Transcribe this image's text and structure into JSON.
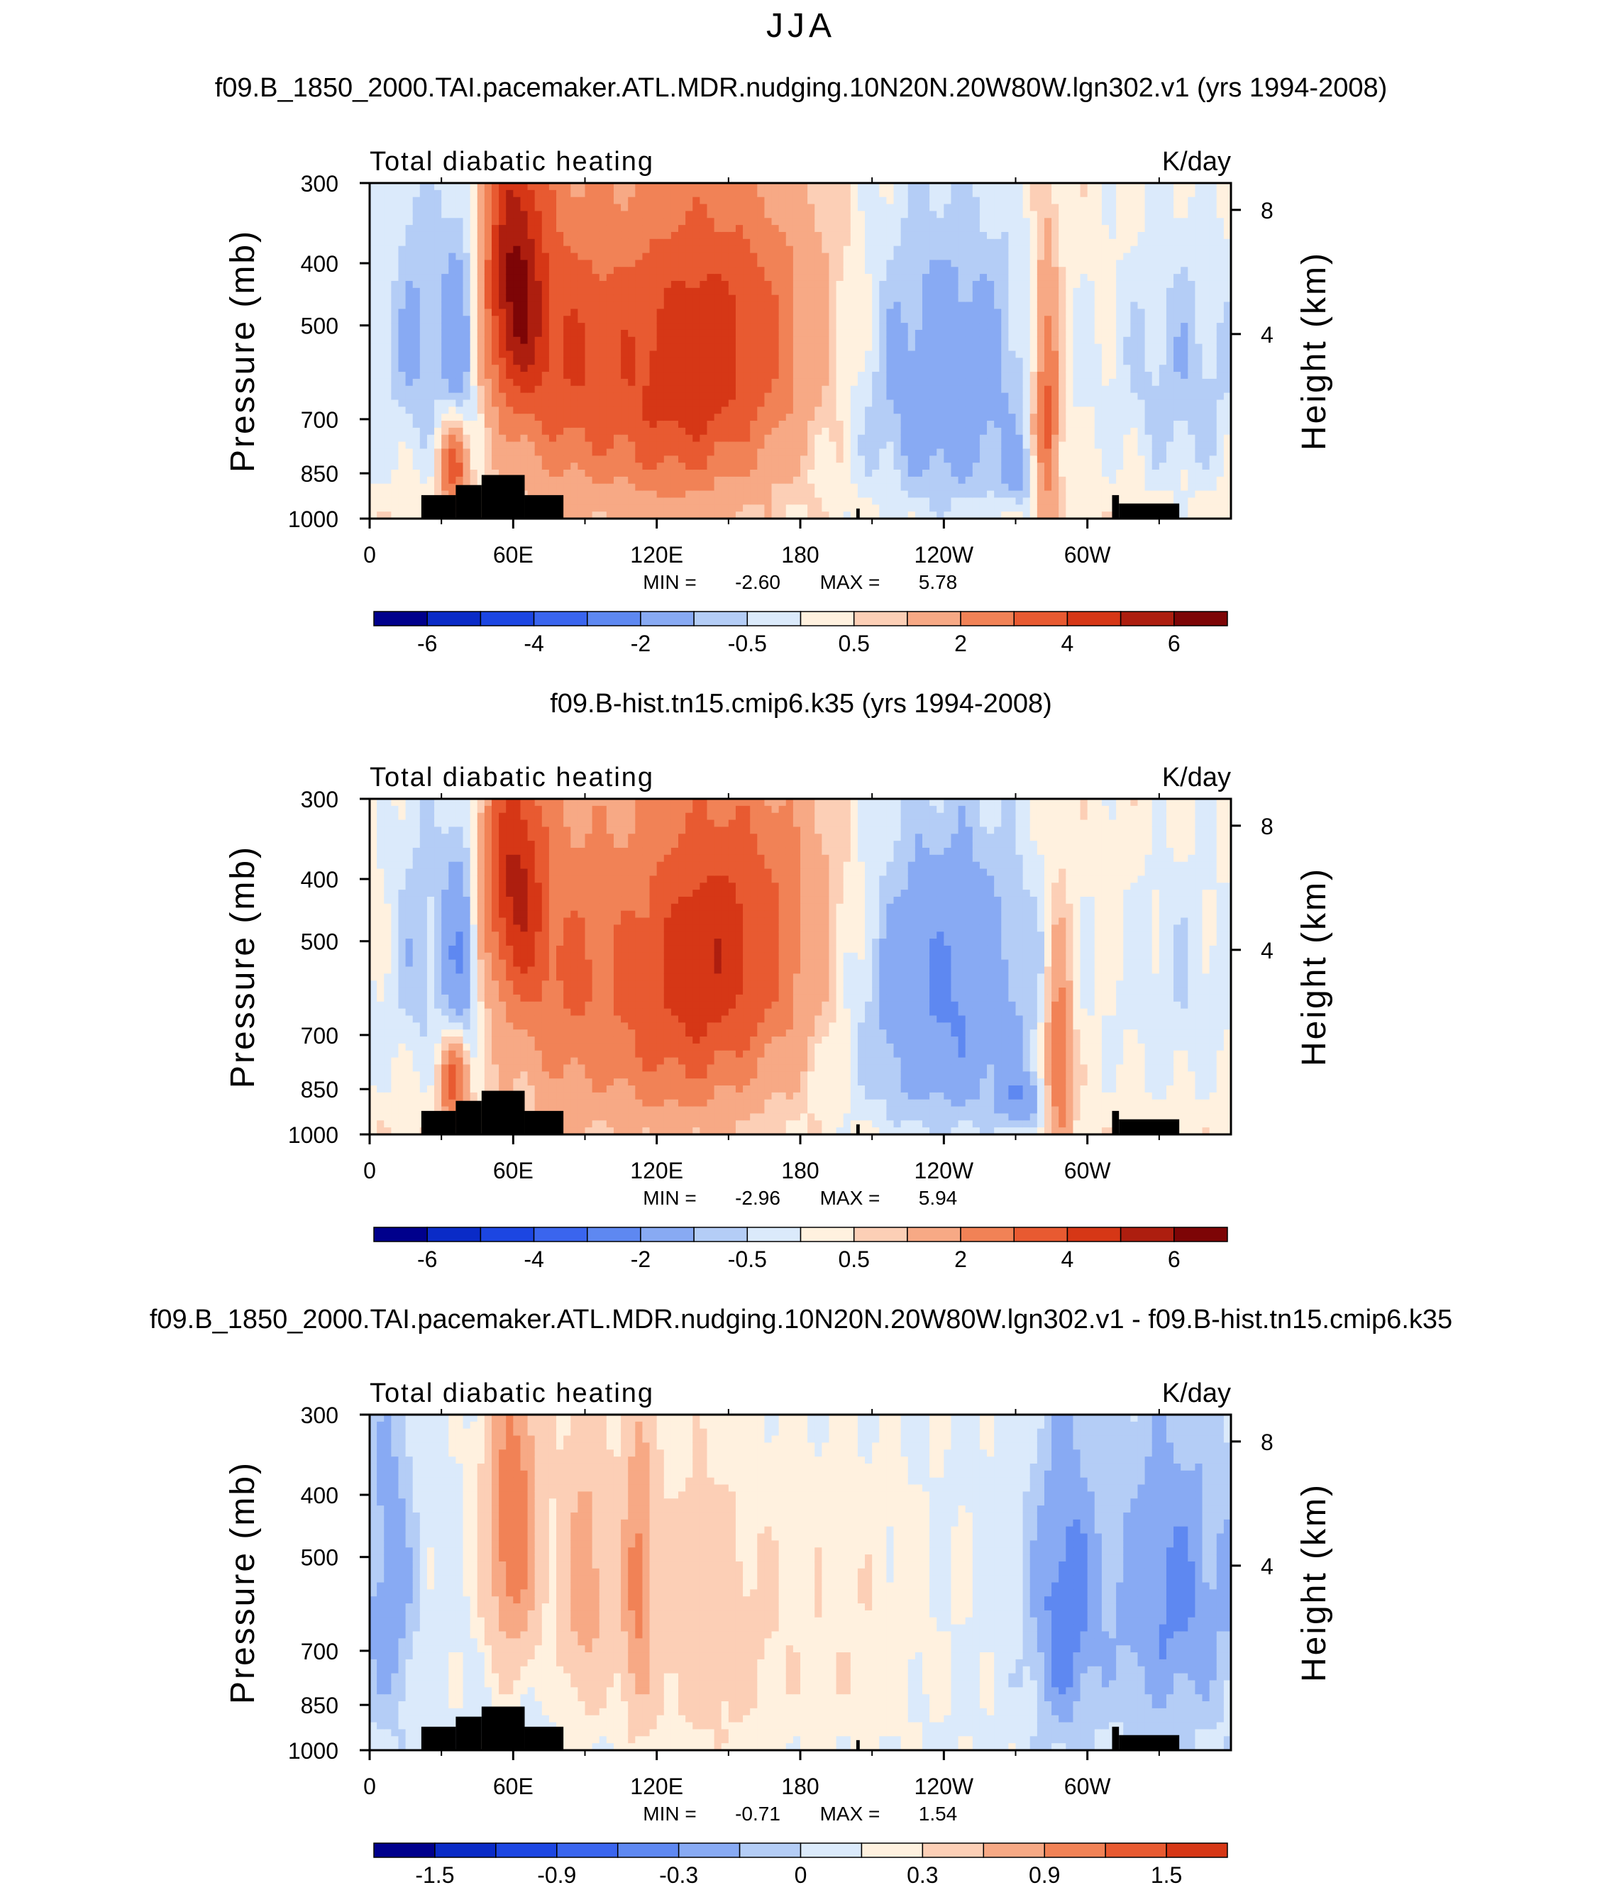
{
  "page_title": "JJA",
  "colors": {
    "full": [
      "#00008c",
      "#0a2bc7",
      "#1c46e2",
      "#3a65ee",
      "#5e88f1",
      "#88aaf3",
      "#b4cdf6",
      "#dbeafb",
      "#fff1df",
      "#fccfb6",
      "#f7a985",
      "#f18256",
      "#e85a31",
      "#d63716",
      "#ad1e0f",
      "#7d0506"
    ],
    "diff": [
      "#00008c",
      "#0a2bc7",
      "#1c46e2",
      "#3a65ee",
      "#5e88f1",
      "#88aaf3",
      "#b4cdf6",
      "#dbeafb",
      "#fff1df",
      "#fccfb6",
      "#f7a985",
      "#f18256",
      "#e85a31",
      "#d63716",
      "#ad1e0f",
      "#7d0506"
    ]
  },
  "chart_data": [
    {
      "type": "heatmap",
      "title": "f09.B_1850_2000.TAI.pacemaker.ATL.MDR.nudging.10N20N.20W80W.lgn302.v1 (yrs 1994-2008)",
      "left_label": "Total diabatic heating",
      "right_label": "K/day",
      "ylabel": "Pressure (mb)",
      "ylabel_right": "Height (km)",
      "yticks": [
        "300",
        "400",
        "500",
        "700",
        "850",
        "1000"
      ],
      "ytick_values": [
        300,
        400,
        500,
        700,
        850,
        1000
      ],
      "ylim": [
        1000,
        300
      ],
      "yticks_right": [
        "8",
        "4"
      ],
      "xticks": [
        "0",
        "60E",
        "120E",
        "180",
        "120W",
        "60W"
      ],
      "xtick_values": [
        0,
        60,
        120,
        180,
        240,
        300
      ],
      "xlim": [
        0,
        360
      ],
      "stats": {
        "min_label": "MIN =",
        "min": "-2.60",
        "max_label": "MAX =",
        "max": "5.78"
      },
      "colorbar": {
        "labels": [
          "-6",
          "-4",
          "-2",
          "-0.5",
          "0.5",
          "2",
          "4",
          "6"
        ],
        "levels": [
          -7,
          -6,
          -5,
          -4,
          -3,
          -2,
          -1,
          -0.5,
          0,
          0.5,
          1,
          2,
          3,
          4,
          5,
          6,
          7
        ]
      },
      "scale": 1,
      "features": [
        {
          "lon": 20,
          "p": 500,
          "sx": 8,
          "sy": 230,
          "a": -1.3
        },
        {
          "lon": 38,
          "p": 520,
          "sx": 6,
          "sy": 170,
          "a": -2.2
        },
        {
          "lon": 35,
          "p": 830,
          "sx": 4,
          "sy": 90,
          "a": 3.3
        },
        {
          "lon": 60,
          "p": 420,
          "sx": 9,
          "sy": 160,
          "a": 4.8
        },
        {
          "lon": 80,
          "p": 560,
          "sx": 16,
          "sy": 210,
          "a": 2.5
        },
        {
          "lon": 140,
          "p": 520,
          "sx": 32,
          "sy": 190,
          "a": 3.9
        },
        {
          "lon": 125,
          "p": 780,
          "sx": 25,
          "sy": 160,
          "a": 1.6
        },
        {
          "lon": 240,
          "p": 620,
          "sx": 30,
          "sy": 260,
          "a": -2.2
        },
        {
          "lon": 275,
          "p": 860,
          "sx": 7,
          "sy": 70,
          "a": -1.1
        },
        {
          "lon": 283,
          "p": 700,
          "sx": 4,
          "sy": 220,
          "a": 3.6
        },
        {
          "lon": 340,
          "p": 600,
          "sx": 22,
          "sy": 230,
          "a": -1.3
        }
      ]
    },
    {
      "type": "heatmap",
      "title": "f09.B-hist.tn15.cmip6.k35 (yrs 1994-2008)",
      "left_label": "Total diabatic heating",
      "right_label": "K/day",
      "ylabel": "Pressure (mb)",
      "ylabel_right": "Height (km)",
      "yticks": [
        "300",
        "400",
        "500",
        "700",
        "850",
        "1000"
      ],
      "ytick_values": [
        300,
        400,
        500,
        700,
        850,
        1000
      ],
      "ylim": [
        1000,
        300
      ],
      "yticks_right": [
        "8",
        "4"
      ],
      "xticks": [
        "0",
        "60E",
        "120E",
        "180",
        "120W",
        "60W"
      ],
      "xtick_values": [
        0,
        60,
        120,
        180,
        240,
        300
      ],
      "xlim": [
        0,
        360
      ],
      "stats": {
        "min_label": "MIN =",
        "min": "-2.96",
        "max_label": "MAX =",
        "max": "5.94"
      },
      "colorbar": {
        "labels": [
          "-6",
          "-4",
          "-2",
          "-0.5",
          "0.5",
          "2",
          "4",
          "6"
        ],
        "levels": [
          -7,
          -6,
          -5,
          -4,
          -3,
          -2,
          -1,
          -0.5,
          0,
          0.5,
          1,
          2,
          3,
          4,
          5,
          6,
          7
        ]
      },
      "scale": 1,
      "features": [
        {
          "lon": 20,
          "p": 500,
          "sx": 8,
          "sy": 230,
          "a": -1.1
        },
        {
          "lon": 38,
          "p": 520,
          "sx": 6,
          "sy": 170,
          "a": -2.4
        },
        {
          "lon": 35,
          "p": 830,
          "sx": 4,
          "sy": 90,
          "a": 3.3
        },
        {
          "lon": 60,
          "p": 400,
          "sx": 9,
          "sy": 140,
          "a": 4.0
        },
        {
          "lon": 80,
          "p": 560,
          "sx": 16,
          "sy": 210,
          "a": 2.0
        },
        {
          "lon": 145,
          "p": 500,
          "sx": 30,
          "sy": 190,
          "a": 4.0
        },
        {
          "lon": 125,
          "p": 780,
          "sx": 25,
          "sy": 160,
          "a": 1.5
        },
        {
          "lon": 240,
          "p": 620,
          "sx": 30,
          "sy": 260,
          "a": -2.6
        },
        {
          "lon": 272,
          "p": 880,
          "sx": 7,
          "sy": 60,
          "a": -1.6
        },
        {
          "lon": 288,
          "p": 760,
          "sx": 4,
          "sy": 200,
          "a": 3.0
        },
        {
          "lon": 340,
          "p": 600,
          "sx": 22,
          "sy": 230,
          "a": -0.9
        }
      ]
    },
    {
      "type": "heatmap",
      "title": "f09.B_1850_2000.TAI.pacemaker.ATL.MDR.nudging.10N20N.20W80W.lgn302.v1 - f09.B-hist.tn15.cmip6.k35",
      "left_label": "Total diabatic heating",
      "right_label": "K/day",
      "ylabel": "Pressure (mb)",
      "ylabel_right": "Height (km)",
      "yticks": [
        "300",
        "400",
        "500",
        "700",
        "850",
        "1000"
      ],
      "ytick_values": [
        300,
        400,
        500,
        700,
        850,
        1000
      ],
      "ylim": [
        1000,
        300
      ],
      "yticks_right": [
        "8",
        "4"
      ],
      "xticks": [
        "0",
        "60E",
        "120E",
        "180",
        "120W",
        "60W"
      ],
      "xtick_values": [
        0,
        60,
        120,
        180,
        240,
        300
      ],
      "xlim": [
        0,
        360
      ],
      "stats": {
        "min_label": "MIN =",
        "min": "-0.71",
        "max_label": "MAX =",
        "max": "1.54"
      },
      "colorbar": {
        "labels": [
          "-1.5",
          "-0.9",
          "-0.3",
          "0",
          "0.3",
          "0.9",
          "1.5"
        ],
        "levels": [
          -1.8,
          -1.5,
          -1.2,
          -0.9,
          -0.6,
          -0.3,
          -0.15,
          0,
          0.15,
          0.3,
          0.6,
          0.9,
          1.2,
          1.5,
          1.8
        ]
      },
      "scale": 0.22,
      "features": [
        {
          "lon": 10,
          "p": 550,
          "sx": 6,
          "sy": 250,
          "a": -1.3
        },
        {
          "lon": 60,
          "p": 450,
          "sx": 8,
          "sy": 180,
          "a": 4.8
        },
        {
          "lon": 90,
          "p": 550,
          "sx": 7,
          "sy": 200,
          "a": 3.0
        },
        {
          "lon": 112,
          "p": 550,
          "sx": 5,
          "sy": 220,
          "a": 3.5
        },
        {
          "lon": 140,
          "p": 650,
          "sx": 20,
          "sy": 260,
          "a": 1.5
        },
        {
          "lon": 200,
          "p": 650,
          "sx": 25,
          "sy": 250,
          "a": 0.7
        },
        {
          "lon": 290,
          "p": 600,
          "sx": 10,
          "sy": 250,
          "a": -2.2
        },
        {
          "lon": 335,
          "p": 580,
          "sx": 20,
          "sy": 240,
          "a": -2.0
        }
      ]
    }
  ]
}
